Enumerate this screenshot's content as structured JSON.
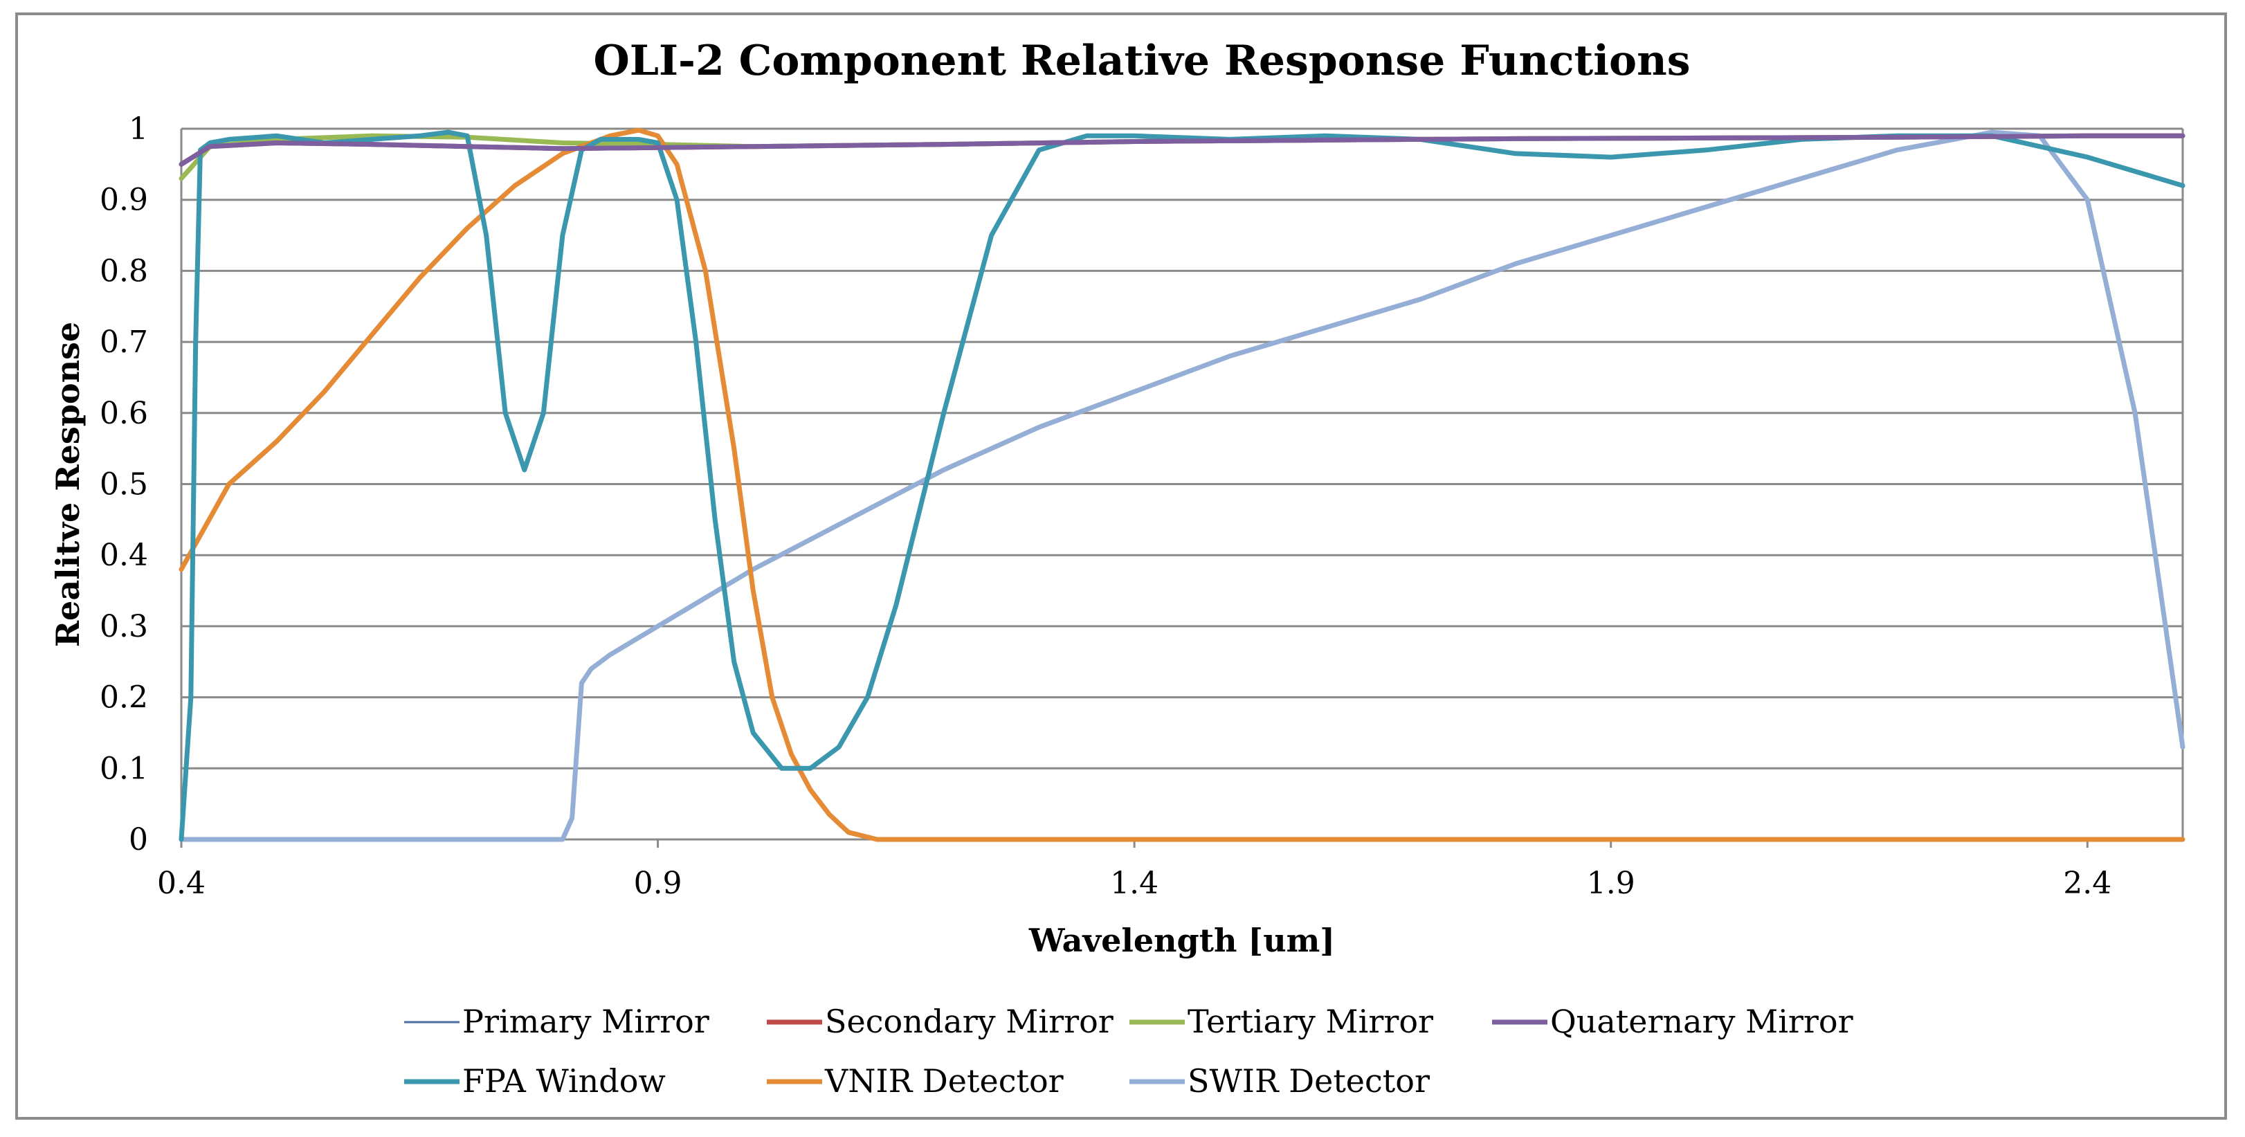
{
  "chart_data": {
    "type": "line",
    "title": "OLI-2 Component Relative Response Functions",
    "xlabel": "Wavelength [um]",
    "ylabel": "Realitve Response",
    "xlim": [
      0.4,
      2.5
    ],
    "ylim": [
      0,
      1
    ],
    "xticks": [
      "0.4",
      "0.9",
      "1.4",
      "1.9",
      "2.4"
    ],
    "xtick_values": [
      0.4,
      0.9,
      1.4,
      1.9,
      2.4
    ],
    "yticks": [
      "0",
      "0.1",
      "0.2",
      "0.3",
      "0.4",
      "0.5",
      "0.6",
      "0.7",
      "0.8",
      "0.9",
      "1"
    ],
    "ytick_values": [
      0,
      0.1,
      0.2,
      0.3,
      0.4,
      0.5,
      0.6,
      0.7,
      0.8,
      0.9,
      1
    ],
    "grid": "horizontal",
    "legend_position": "bottom",
    "series": [
      {
        "name": "Primary Mirror",
        "color": "#4a6fa5",
        "style": "thin",
        "x": [
          0.4,
          0.43,
          0.5,
          0.6,
          0.7,
          0.8,
          1.0,
          1.2,
          1.4,
          1.6,
          1.8,
          2.0,
          2.2,
          2.4,
          2.5
        ],
        "y": [
          0.95,
          0.975,
          0.98,
          0.978,
          0.975,
          0.972,
          0.975,
          0.978,
          0.982,
          0.984,
          0.986,
          0.987,
          0.988,
          0.99,
          0.99
        ]
      },
      {
        "name": "Secondary Mirror",
        "color": "#be4b48",
        "style": "normal",
        "x": [
          0.4,
          0.43,
          0.5,
          0.6,
          0.7,
          0.8,
          1.0,
          1.2,
          1.4,
          1.6,
          1.8,
          2.0,
          2.2,
          2.4,
          2.5
        ],
        "y": [
          0.95,
          0.975,
          0.98,
          0.978,
          0.975,
          0.972,
          0.975,
          0.978,
          0.982,
          0.984,
          0.986,
          0.987,
          0.988,
          0.99,
          0.99
        ]
      },
      {
        "name": "Tertiary Mirror",
        "color": "#98b954",
        "style": "normal",
        "x": [
          0.4,
          0.43,
          0.5,
          0.6,
          0.7,
          0.8,
          0.9,
          1.0,
          1.2,
          1.4,
          1.6,
          1.8,
          2.0,
          2.2,
          2.4,
          2.5
        ],
        "y": [
          0.93,
          0.975,
          0.985,
          0.99,
          0.988,
          0.98,
          0.978,
          0.975,
          0.978,
          0.982,
          0.984,
          0.986,
          0.987,
          0.988,
          0.99,
          0.99
        ]
      },
      {
        "name": "Quaternary Mirror",
        "color": "#7d5fa0",
        "style": "normal",
        "x": [
          0.4,
          0.43,
          0.5,
          0.6,
          0.7,
          0.8,
          1.0,
          1.2,
          1.4,
          1.6,
          1.8,
          2.0,
          2.2,
          2.4,
          2.5
        ],
        "y": [
          0.95,
          0.975,
          0.98,
          0.978,
          0.975,
          0.972,
          0.975,
          0.978,
          0.982,
          0.984,
          0.986,
          0.987,
          0.988,
          0.99,
          0.99
        ]
      },
      {
        "name": "FPA Window",
        "color": "#3a97ad",
        "style": "thick",
        "x": [
          0.4,
          0.41,
          0.415,
          0.42,
          0.43,
          0.45,
          0.5,
          0.55,
          0.6,
          0.65,
          0.68,
          0.7,
          0.72,
          0.74,
          0.76,
          0.78,
          0.8,
          0.82,
          0.84,
          0.86,
          0.88,
          0.9,
          0.92,
          0.94,
          0.96,
          0.98,
          1.0,
          1.03,
          1.06,
          1.09,
          1.12,
          1.15,
          1.2,
          1.25,
          1.3,
          1.35,
          1.4,
          1.5,
          1.6,
          1.7,
          1.8,
          1.9,
          2.0,
          2.1,
          2.2,
          2.3,
          2.4,
          2.5
        ],
        "y": [
          0.0,
          0.2,
          0.7,
          0.97,
          0.98,
          0.985,
          0.99,
          0.98,
          0.985,
          0.99,
          0.995,
          0.99,
          0.85,
          0.6,
          0.52,
          0.6,
          0.85,
          0.97,
          0.985,
          0.985,
          0.985,
          0.98,
          0.9,
          0.7,
          0.45,
          0.25,
          0.15,
          0.1,
          0.1,
          0.13,
          0.2,
          0.33,
          0.6,
          0.85,
          0.97,
          0.99,
          0.99,
          0.985,
          0.99,
          0.985,
          0.965,
          0.96,
          0.97,
          0.985,
          0.99,
          0.99,
          0.96,
          0.92
        ]
      },
      {
        "name": "VNIR Detector",
        "color": "#e58a35",
        "style": "thick",
        "x": [
          0.4,
          0.45,
          0.5,
          0.55,
          0.6,
          0.65,
          0.7,
          0.75,
          0.8,
          0.85,
          0.88,
          0.9,
          0.92,
          0.95,
          0.98,
          1.0,
          1.02,
          1.04,
          1.06,
          1.08,
          1.1,
          1.13,
          1.15,
          1.18,
          1.2,
          2.5
        ],
        "y": [
          0.38,
          0.5,
          0.56,
          0.63,
          0.71,
          0.79,
          0.86,
          0.92,
          0.965,
          0.99,
          0.998,
          0.99,
          0.95,
          0.8,
          0.55,
          0.35,
          0.2,
          0.12,
          0.07,
          0.035,
          0.01,
          0.0,
          0.0,
          0.0,
          0.0,
          0.0
        ]
      },
      {
        "name": "SWIR Detector",
        "color": "#95aed6",
        "style": "thick",
        "x": [
          0.4,
          0.8,
          0.81,
          0.82,
          0.83,
          0.85,
          0.9,
          1.0,
          1.1,
          1.2,
          1.3,
          1.4,
          1.5,
          1.6,
          1.7,
          1.8,
          1.9,
          2.0,
          2.1,
          2.2,
          2.3,
          2.35,
          2.4,
          2.45,
          2.5
        ],
        "y": [
          0.0,
          0.0,
          0.03,
          0.22,
          0.24,
          0.26,
          0.3,
          0.38,
          0.45,
          0.52,
          0.58,
          0.63,
          0.68,
          0.72,
          0.76,
          0.81,
          0.85,
          0.89,
          0.93,
          0.97,
          0.995,
          0.99,
          0.9,
          0.6,
          0.13
        ]
      }
    ]
  }
}
